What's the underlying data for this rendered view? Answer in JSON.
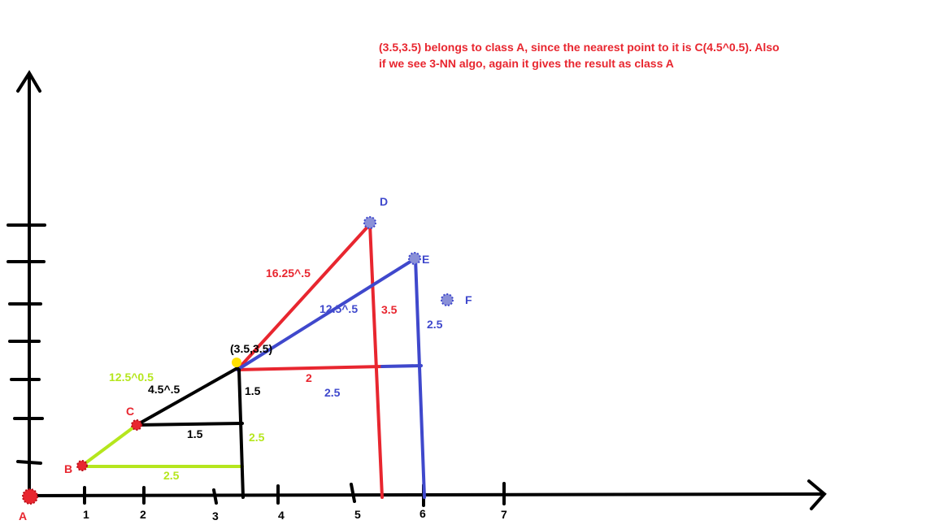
{
  "note": {
    "line1": "(3.5,3.5) belongs to class A, since the nearest point to it is C(4.5^0.5). Also",
    "line2": "if we see 3-NN algo, again it gives the result as class A"
  },
  "x_ticks": [
    "1",
    "2",
    "3",
    "4",
    "5",
    "6",
    "7"
  ],
  "points": {
    "a": "A",
    "b": "B",
    "c": "C",
    "d": "D",
    "e": "E",
    "f": "F",
    "query": "(3.5,3.5)"
  },
  "labels": {
    "d_hyp": "16.25^.5",
    "d_vert": "3.5",
    "d_horiz": "2",
    "e_hyp": "12.5^.5",
    "e_vert": "2.5",
    "e_horiz": "2.5",
    "c_hyp": "4.5^.5",
    "c_horiz": "1.5",
    "c_vert": "1.5",
    "b_hyp": "12.5^0.5",
    "b_horiz": "2.5",
    "b_vert": "2.5"
  },
  "colors": {
    "red": "#e8262f",
    "blue": "#3f48cc",
    "lime": "#b5e61d",
    "black": "#000000",
    "yellow": "#ffe000"
  }
}
